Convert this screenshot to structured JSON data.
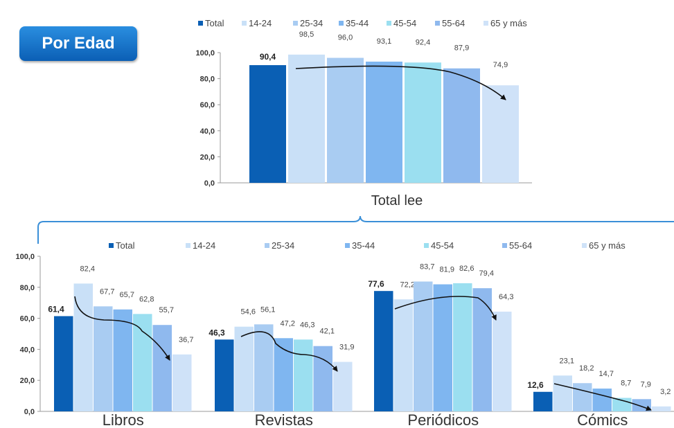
{
  "badge": {
    "label": "Por Edad"
  },
  "colors": [
    "#0a5fb4",
    "#c9e0f7",
    "#a9ccf2",
    "#7fb6f0",
    "#9bdff0",
    "#8fb9ee",
    "#cfe2f8"
  ],
  "chart_data": [
    {
      "type": "bar",
      "xlabel": "Total lee",
      "ylim": [
        0,
        100
      ],
      "yticks": [
        "0,0",
        "20,0",
        "40,0",
        "60,0",
        "80,0",
        "100,0"
      ],
      "legend": [
        "Total",
        "14-24",
        "25-34",
        "35-44",
        "45-54",
        "55-64",
        "65 y más"
      ],
      "legend_position": "top",
      "labels": [
        "90,4",
        "98,5",
        "96,0",
        "93,1",
        "92,4",
        "87,9",
        "74,9"
      ],
      "values": [
        90.4,
        98.5,
        96.0,
        93.1,
        92.4,
        87.9,
        74.9
      ]
    },
    {
      "type": "bar",
      "ylim": [
        0,
        100
      ],
      "yticks": [
        "0,0",
        "20,0",
        "40,0",
        "60,0",
        "80,0",
        "100,0"
      ],
      "legend": [
        "Total",
        "14-24",
        "25-34",
        "35-44",
        "45-54",
        "55-64",
        "65 y más"
      ],
      "legend_position": "top",
      "categories": [
        "Libros",
        "Revistas",
        "Periódicos",
        "Cómics"
      ],
      "groups": [
        {
          "values": [
            61.4,
            82.4,
            67.7,
            65.7,
            62.8,
            55.7,
            36.7
          ],
          "labels": [
            "61,4",
            "82,4",
            "67,7",
            "65,7",
            "62,8",
            "55,7",
            "36,7"
          ]
        },
        {
          "values": [
            46.3,
            54.6,
            56.1,
            47.2,
            46.3,
            42.1,
            31.9
          ],
          "labels": [
            "46,3",
            "54,6",
            "56,1",
            "47,2",
            "46,3",
            "42,1",
            "31,9"
          ]
        },
        {
          "values": [
            77.6,
            72.2,
            83.7,
            81.9,
            82.6,
            79.4,
            64.3
          ],
          "labels": [
            "77,6",
            "72,2",
            "83,7",
            "81,9",
            "82,6",
            "79,4",
            "64,3"
          ]
        },
        {
          "values": [
            12.6,
            23.1,
            18.2,
            14.7,
            8.7,
            7.9,
            3.2
          ],
          "labels": [
            "12,6",
            "23,1",
            "18,2",
            "14,7",
            "8,7",
            "7,9",
            "3,2"
          ]
        }
      ]
    }
  ]
}
